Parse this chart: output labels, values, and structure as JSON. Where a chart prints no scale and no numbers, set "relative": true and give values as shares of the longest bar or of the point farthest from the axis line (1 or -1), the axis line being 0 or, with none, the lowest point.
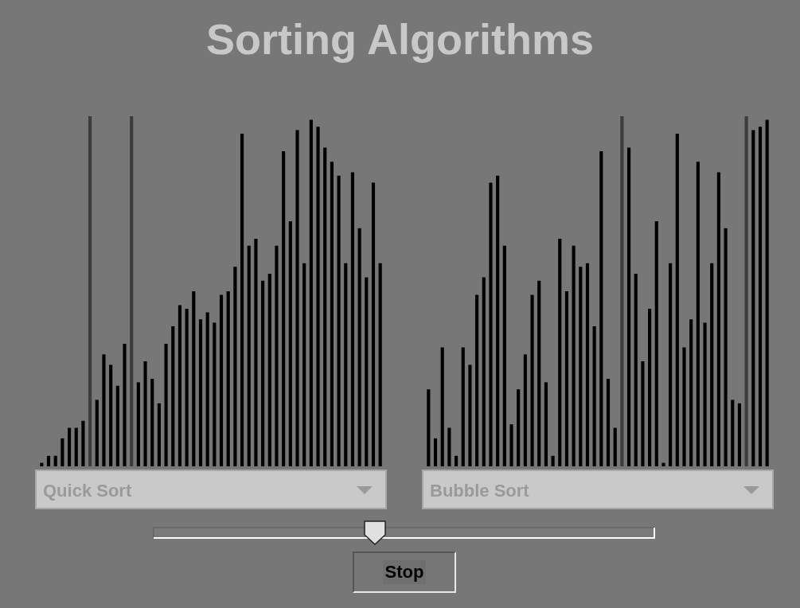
{
  "chart_data": [
    {
      "type": "bar",
      "title": "Sorting Algorithms",
      "xlabel": "Quick Sort",
      "relative": true,
      "categories": [
        null,
        null,
        null,
        null,
        null,
        null,
        null,
        null,
        null,
        null,
        null,
        null,
        null,
        null,
        null,
        null,
        null,
        null,
        null,
        null,
        null,
        null,
        null,
        null,
        null,
        null,
        null,
        null,
        null,
        null,
        null,
        null,
        null,
        null,
        null,
        null,
        null,
        null,
        null,
        null,
        null,
        null,
        null,
        null,
        null,
        null,
        null,
        null,
        null,
        null
      ],
      "values": [
        0.01,
        0.03,
        0.03,
        0.08,
        0.11,
        0.11,
        0.13,
        1,
        0.19,
        0.32,
        0.29,
        0.23,
        0.35,
        1,
        0.24,
        0.3,
        0.25,
        0.18,
        0.35,
        0.4,
        0.46,
        0.45,
        0.5,
        0.42,
        0.44,
        0.41,
        0.49,
        0.5,
        0.57,
        0.95,
        0.63,
        0.65,
        0.53,
        0.55,
        0.63,
        0.9,
        0.7,
        0.96,
        0.58,
        0.99,
        0.97,
        0.91,
        0.87,
        0.83,
        0.58,
        0.84,
        0.68,
        0.54,
        0.81,
        0.58
      ],
      "colors": [
        "#000000",
        "#000000",
        "#000000",
        "#000000",
        "#000000",
        "#000000",
        "#000000",
        "#3c3c3c",
        "#000000",
        "#000000",
        "#000000",
        "#000000",
        "#000000",
        "#3c3c3c",
        "#000000",
        "#000000",
        "#000000",
        "#000000",
        "#000000",
        "#000000",
        "#000000",
        "#000000",
        "#000000",
        "#000000",
        "#000000",
        "#000000",
        "#000000",
        "#000000",
        "#000000",
        "#000000",
        "#000000",
        "#000000",
        "#000000",
        "#000000",
        "#000000",
        "#000000",
        "#000000",
        "#000000",
        "#000000",
        "#000000",
        "#000000",
        "#000000",
        "#000000",
        "#000000",
        "#000000",
        "#000000",
        "#000000",
        "#000000",
        "#000000",
        "#000000"
      ]
    },
    {
      "type": "bar",
      "xlabel": "Bubble Sort",
      "relative": true,
      "categories": [
        null,
        null,
        null,
        null,
        null,
        null,
        null,
        null,
        null,
        null,
        null,
        null,
        null,
        null,
        null,
        null,
        null,
        null,
        null,
        null,
        null,
        null,
        null,
        null,
        null,
        null,
        null,
        null,
        null,
        null,
        null,
        null,
        null,
        null,
        null,
        null,
        null,
        null,
        null,
        null,
        null,
        null,
        null,
        null,
        null,
        null,
        null,
        null,
        null,
        null
      ],
      "values": [
        0.22,
        0.08,
        0.34,
        0.11,
        0.03,
        0.34,
        0.29,
        0.49,
        0.54,
        0.81,
        0.83,
        0.63,
        0.12,
        0.22,
        0.32,
        0.49,
        0.53,
        0.24,
        0.03,
        0.65,
        0.5,
        0.63,
        0.57,
        0.58,
        0.4,
        0.9,
        0.25,
        0.11,
        1,
        0.91,
        0.55,
        0.3,
        0.45,
        0.7,
        0.01,
        0.58,
        0.95,
        0.34,
        0.42,
        0.87,
        0.41,
        0.58,
        0.84,
        0.68,
        0.19,
        0.18,
        1,
        0.96,
        0.97,
        0.99
      ],
      "colors": [
        "#000000",
        "#000000",
        "#000000",
        "#000000",
        "#000000",
        "#000000",
        "#000000",
        "#000000",
        "#000000",
        "#000000",
        "#000000",
        "#000000",
        "#000000",
        "#000000",
        "#000000",
        "#000000",
        "#000000",
        "#000000",
        "#000000",
        "#000000",
        "#000000",
        "#000000",
        "#000000",
        "#000000",
        "#000000",
        "#000000",
        "#000000",
        "#000000",
        "#3c3c3c",
        "#000000",
        "#000000",
        "#000000",
        "#000000",
        "#000000",
        "#000000",
        "#000000",
        "#000000",
        "#000000",
        "#000000",
        "#000000",
        "#000000",
        "#000000",
        "#000000",
        "#000000",
        "#000000",
        "#000000",
        "#3c3c3c",
        "#000000",
        "#000000",
        "#000000"
      ]
    },
    {
      "type": "other",
      "annotations": [
        "Stop"
      ]
    }
  ]
}
